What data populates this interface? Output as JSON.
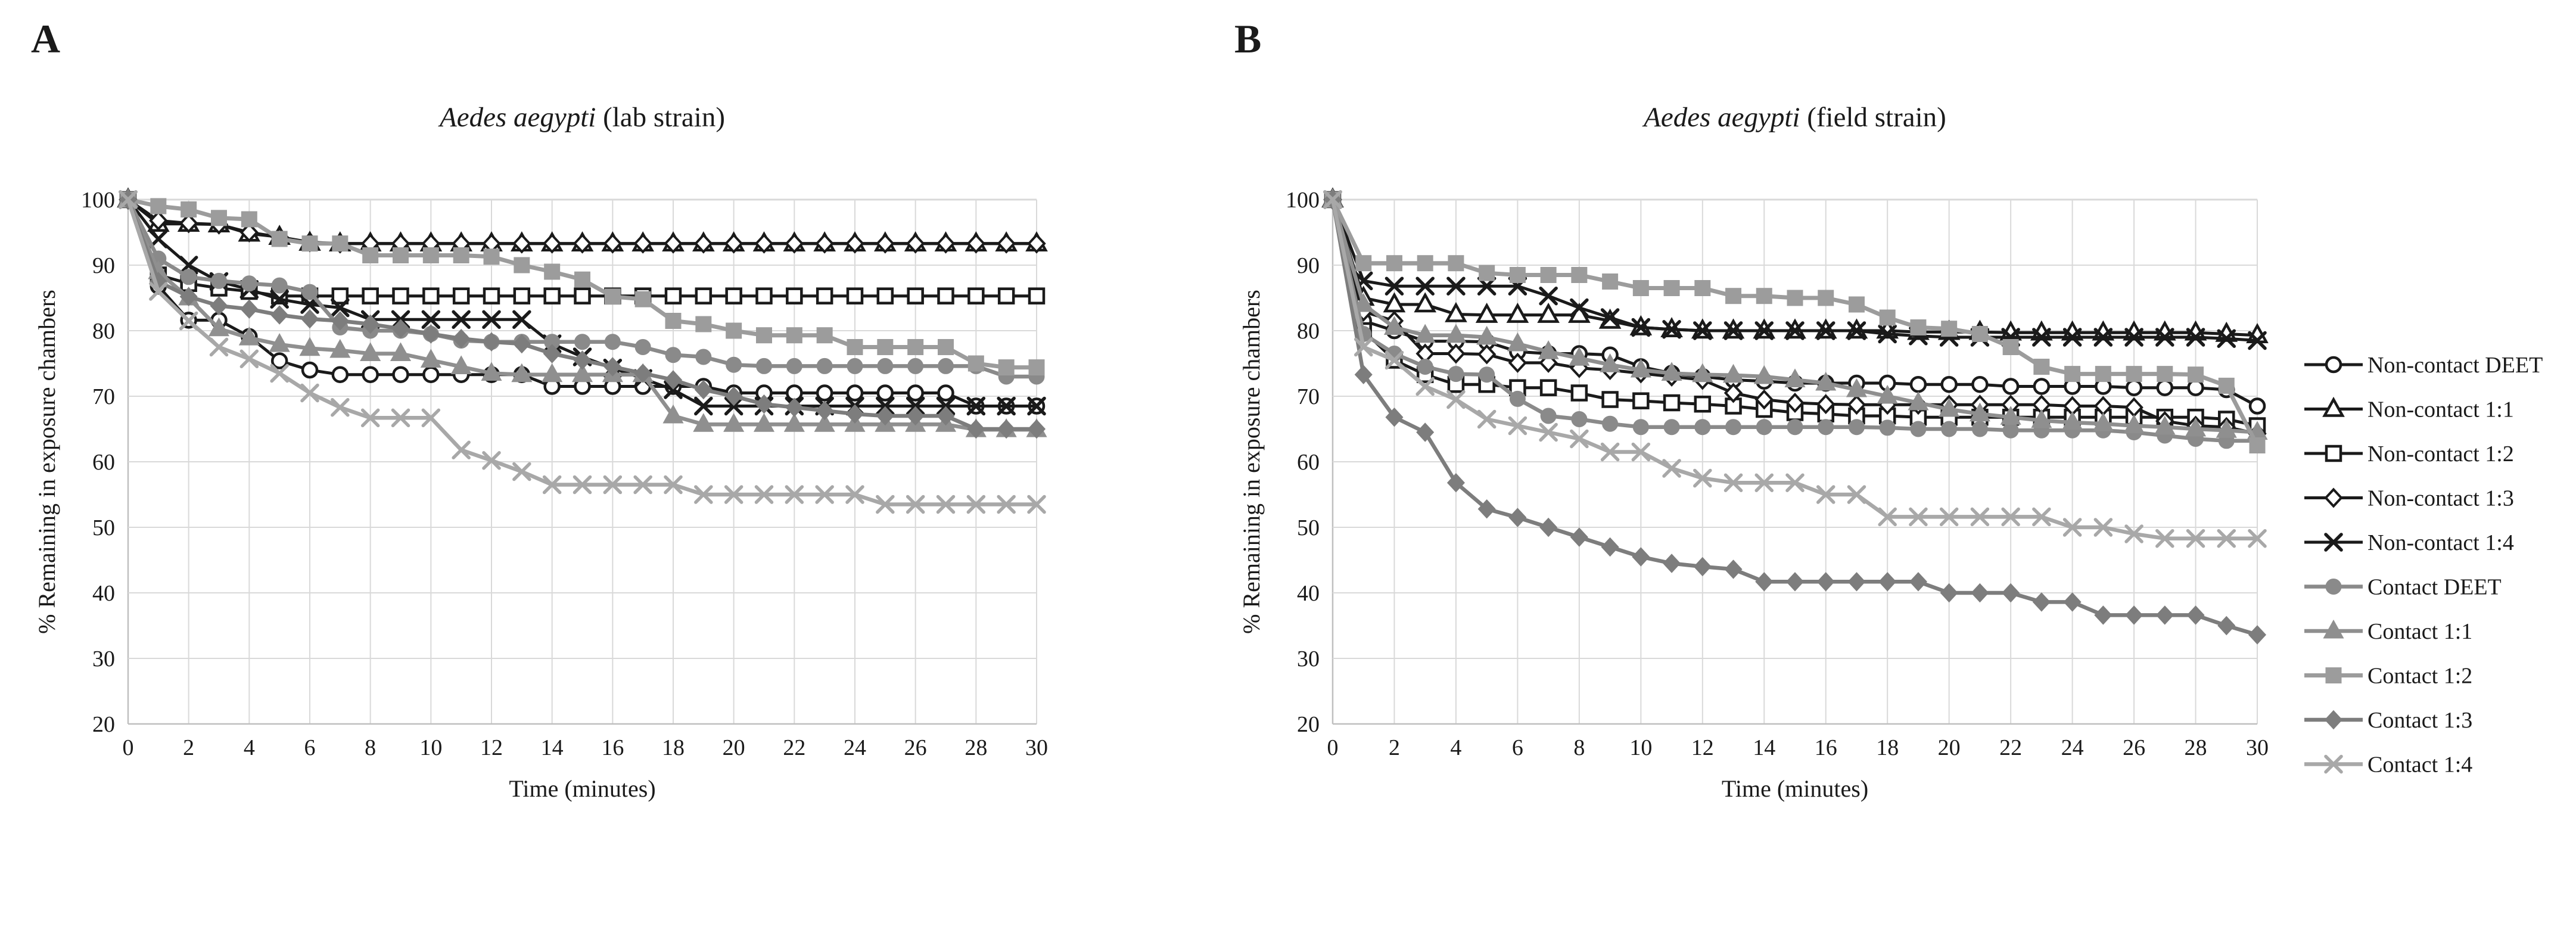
{
  "figure": {
    "background": "#ffffff",
    "text_color": "#1a1a1a",
    "gridline_color": "#d9d9d9",
    "panel_letters": [
      "A",
      "B"
    ],
    "legend": {
      "position": "right",
      "entries": [
        {
          "label": "Non-contact DEET",
          "marker": "circle-open-icon"
        },
        {
          "label": "Non-contact 1:1",
          "marker": "triangle-open-icon"
        },
        {
          "label": "Non-contact 1:2",
          "marker": "square-open-icon"
        },
        {
          "label": "Non-contact 1:3",
          "marker": "diamond-open-icon"
        },
        {
          "label": "Non-contact 1:4",
          "marker": "x-black-icon"
        },
        {
          "label": "Contact DEET",
          "marker": "circle-filled-icon"
        },
        {
          "label": "Contact 1:1",
          "marker": "triangle-filled-icon"
        },
        {
          "label": "Contact 1:2",
          "marker": "square-filled-icon"
        },
        {
          "label": "Contact 1:3",
          "marker": "diamond-filled-icon"
        },
        {
          "label": "Contact 1:4",
          "marker": "x-gray-icon"
        }
      ]
    }
  },
  "chart_data": [
    {
      "type": "line",
      "panel_letter": "A",
      "title_italic": "Aedes aegypti",
      "title_rest": " (lab strain)",
      "xlabel": "Time (minutes)",
      "ylabel": "% Remaining in exposure chambers",
      "x": [
        0,
        1,
        2,
        3,
        4,
        5,
        6,
        7,
        8,
        9,
        10,
        11,
        12,
        13,
        14,
        15,
        16,
        17,
        18,
        19,
        20,
        21,
        22,
        23,
        24,
        25,
        26,
        27,
        28,
        29,
        30
      ],
      "xlim": [
        0,
        30
      ],
      "ylim": [
        20,
        100
      ],
      "xtick_step": 2,
      "ytick_step": 10,
      "grid": true,
      "series": [
        {
          "name": "Non-contact DEET",
          "color": "#1a1a1a",
          "marker": "circle",
          "fill": "open",
          "width": 5,
          "values": [
            100,
            86.8,
            81.6,
            81.6,
            79.1,
            75.4,
            74,
            73.3,
            73.3,
            73.3,
            73.3,
            73.3,
            73.3,
            73.3,
            71.5,
            71.5,
            71.5,
            71.5,
            71.5,
            71.5,
            70.5,
            70.5,
            70.5,
            70.5,
            70.5,
            70.5,
            70.5,
            70.5,
            68.5,
            68.5,
            68.5
          ]
        },
        {
          "name": "Non-contact 1:1",
          "color": "#1a1a1a",
          "marker": "triangle",
          "fill": "open",
          "width": 5,
          "values": [
            100,
            96.3,
            96.3,
            96.2,
            94.8,
            94.3,
            93.4,
            93.3,
            93.3,
            93.3,
            93.3,
            93.3,
            93.3,
            93.3,
            93.3,
            93.3,
            93.3,
            93.3,
            93.3,
            93.3,
            93.3,
            93.3,
            93.3,
            93.3,
            93.3,
            93.3,
            93.3,
            93.3,
            93.3,
            93.3,
            93.3
          ]
        },
        {
          "name": "Non-contact 1:2",
          "color": "#1a1a1a",
          "marker": "square",
          "fill": "open",
          "width": 5,
          "values": [
            100,
            88.5,
            87.2,
            86.5,
            86,
            85.3,
            85.3,
            85.3,
            85.3,
            85.3,
            85.3,
            85.3,
            85.3,
            85.3,
            85.3,
            85.3,
            85.3,
            85.3,
            85.3,
            85.3,
            85.3,
            85.3,
            85.3,
            85.3,
            85.3,
            85.3,
            85.3,
            85.3,
            85.3,
            85.3,
            85.3
          ]
        },
        {
          "name": "Non-contact 1:3",
          "color": "#1a1a1a",
          "marker": "diamond",
          "fill": "open",
          "width": 5,
          "values": [
            100,
            96.8,
            96.4,
            96.2,
            95,
            94.3,
            93.5,
            93.3,
            93.3,
            93.3,
            93.3,
            93.3,
            93.3,
            93.3,
            93.3,
            93.3,
            93.3,
            93.3,
            93.3,
            93.3,
            93.3,
            93.3,
            93.3,
            93.3,
            93.3,
            93.3,
            93.3,
            93.3,
            93.3,
            93.3,
            93.3
          ]
        },
        {
          "name": "Non-contact 1:4",
          "color": "#1a1a1a",
          "marker": "x",
          "fill": "line",
          "width": 5,
          "values": [
            100,
            94,
            90,
            87.5,
            86.3,
            84.8,
            84,
            83.5,
            81.7,
            81.7,
            81.7,
            81.7,
            81.7,
            81.7,
            78,
            76,
            74.3,
            72.7,
            71,
            68.5,
            68.5,
            68.5,
            68.5,
            68.5,
            68.5,
            68.5,
            68.5,
            68.5,
            68.5,
            68.5,
            68.5
          ]
        },
        {
          "name": "Contact DEET",
          "color": "#8a8a8a",
          "marker": "circle",
          "fill": "solid",
          "width": 6.5,
          "values": [
            100,
            91,
            88.2,
            87.6,
            87.2,
            86.9,
            85.9,
            80.5,
            80,
            80,
            79.5,
            78.5,
            78.3,
            78.3,
            78.3,
            78.3,
            78.3,
            77.5,
            76.3,
            76,
            74.8,
            74.6,
            74.6,
            74.6,
            74.6,
            74.6,
            74.6,
            74.6,
            74.6,
            73,
            73
          ]
        },
        {
          "name": "Contact 1:1",
          "color": "#8f8f8f",
          "marker": "triangle",
          "fill": "solid",
          "width": 6.5,
          "values": [
            100,
            89,
            85,
            80.3,
            78.9,
            77.9,
            77.3,
            77,
            76.5,
            76.5,
            75.5,
            74.5,
            73.5,
            73.3,
            73.3,
            73.3,
            73.3,
            73.3,
            67,
            65.7,
            65.7,
            65.7,
            65.7,
            65.7,
            65.7,
            65.7,
            65.7,
            65.7,
            64.9,
            64.9,
            64.9
          ]
        },
        {
          "name": "Contact 1:2",
          "color": "#9c9c9c",
          "marker": "square",
          "fill": "solid",
          "width": 7,
          "values": [
            100,
            99,
            98.5,
            97.2,
            97,
            94,
            93.3,
            93.3,
            91.5,
            91.5,
            91.5,
            91.5,
            91.3,
            90,
            89,
            87.8,
            85.2,
            84.8,
            81.5,
            81,
            80,
            79.3,
            79.3,
            79.3,
            77.5,
            77.5,
            77.5,
            77.5,
            75,
            74.4,
            74.4
          ]
        },
        {
          "name": "Contact 1:3",
          "color": "#7d7d7d",
          "marker": "diamond",
          "fill": "solid",
          "width": 6.5,
          "values": [
            100,
            87.5,
            85.2,
            83.8,
            83.3,
            82.4,
            81.8,
            81.5,
            81,
            80.3,
            79.5,
            78.8,
            78.3,
            78,
            76.5,
            75.5,
            74.5,
            73.5,
            72.5,
            71,
            70,
            68.8,
            68.3,
            67.8,
            67.3,
            67,
            67,
            67,
            65,
            65,
            65
          ]
        },
        {
          "name": "Contact 1:4",
          "color": "#a8a8a8",
          "marker": "x",
          "fill": "line",
          "width": 6.5,
          "values": [
            100,
            86,
            81.5,
            77.5,
            75.7,
            73.5,
            70.5,
            68.3,
            66.7,
            66.7,
            66.7,
            61.8,
            60.2,
            58.5,
            56.5,
            56.5,
            56.5,
            56.5,
            56.5,
            55,
            55,
            55,
            55,
            55,
            55,
            53.5,
            53.5,
            53.5,
            53.5,
            53.5,
            53.5
          ]
        }
      ]
    },
    {
      "type": "line",
      "panel_letter": "B",
      "title_italic": "Aedes aegypti",
      "title_rest": " (field strain)",
      "xlabel": "Time (minutes)",
      "ylabel": "% Remaining in exposure chambers",
      "x": [
        0,
        1,
        2,
        3,
        4,
        5,
        6,
        7,
        8,
        9,
        10,
        11,
        12,
        13,
        14,
        15,
        16,
        17,
        18,
        19,
        20,
        21,
        22,
        23,
        24,
        25,
        26,
        27,
        28,
        29,
        30
      ],
      "xlim": [
        0,
        30
      ],
      "ylim": [
        20,
        100
      ],
      "xtick_step": 2,
      "ytick_step": 10,
      "grid": true,
      "series": [
        {
          "name": "Non-contact DEET",
          "color": "#1a1a1a",
          "marker": "circle",
          "fill": "open",
          "width": 5,
          "values": [
            100,
            81.5,
            80,
            78.4,
            78.4,
            78.3,
            76.8,
            76.5,
            76.5,
            76.3,
            74.5,
            73.5,
            73,
            72.5,
            72.3,
            72,
            72,
            72,
            72,
            71.8,
            71.8,
            71.8,
            71.5,
            71.5,
            71.5,
            71.5,
            71.3,
            71.3,
            71.3,
            71,
            68.5
          ]
        },
        {
          "name": "Non-contact 1:1",
          "color": "#1a1a1a",
          "marker": "triangle",
          "fill": "open",
          "width": 5,
          "values": [
            100,
            85,
            84,
            84,
            82.5,
            82.4,
            82.4,
            82.4,
            82.4,
            81.5,
            80.5,
            80.2,
            80,
            80,
            80,
            80,
            80,
            80,
            80,
            79.8,
            79.8,
            79.8,
            79.7,
            79.7,
            79.7,
            79.7,
            79.7,
            79.7,
            79.7,
            79.5,
            79.3
          ]
        },
        {
          "name": "Non-contact 1:2",
          "color": "#1a1a1a",
          "marker": "square",
          "fill": "open",
          "width": 5,
          "values": [
            100,
            80,
            75.5,
            73.3,
            71.8,
            71.8,
            71.3,
            71.3,
            70.5,
            69.5,
            69.3,
            69,
            68.8,
            68.5,
            68,
            67.5,
            67.3,
            67,
            67,
            66.8,
            66.8,
            66.8,
            66.8,
            66.8,
            66.8,
            66.8,
            66.8,
            66.8,
            66.8,
            66.5,
            65.5
          ]
        },
        {
          "name": "Non-contact 1:3",
          "color": "#1a1a1a",
          "marker": "diamond",
          "fill": "open",
          "width": 5,
          "values": [
            100,
            82.9,
            81.5,
            76.5,
            76.5,
            76.4,
            75.1,
            75.1,
            74.3,
            74,
            73.5,
            73,
            72.5,
            70.5,
            69.5,
            69,
            68.8,
            68.7,
            68.7,
            68.7,
            68.7,
            68.7,
            68.7,
            68.7,
            68.5,
            68.5,
            68.3,
            66.2,
            65.5,
            65.3,
            64.3
          ]
        },
        {
          "name": "Non-contact 1:4",
          "color": "#1a1a1a",
          "marker": "x",
          "fill": "line",
          "width": 5,
          "values": [
            100,
            87.6,
            86.8,
            86.8,
            86.8,
            86.8,
            86.8,
            85.3,
            83.5,
            82,
            80.5,
            80.2,
            80,
            80,
            80,
            80,
            80,
            80,
            79.5,
            79.2,
            79,
            79,
            79,
            79,
            79,
            79,
            79,
            79,
            79,
            78.8,
            78.5
          ]
        },
        {
          "name": "Contact DEET",
          "color": "#8a8a8a",
          "marker": "circle",
          "fill": "solid",
          "width": 6.5,
          "values": [
            100,
            79.5,
            76.5,
            74.5,
            73.4,
            73.3,
            69.6,
            67,
            66.5,
            65.8,
            65.3,
            65.3,
            65.3,
            65.3,
            65.3,
            65.3,
            65.3,
            65.3,
            65.2,
            65,
            65,
            65,
            64.8,
            64.8,
            64.8,
            64.8,
            64.5,
            64,
            63.5,
            63.2,
            63.2
          ]
        },
        {
          "name": "Contact 1:1",
          "color": "#8f8f8f",
          "marker": "triangle",
          "fill": "solid",
          "width": 6.5,
          "values": [
            100,
            84,
            80.5,
            79.3,
            79.3,
            79,
            78,
            76.8,
            75.8,
            74.8,
            74,
            73.5,
            73.3,
            73.2,
            73,
            72.5,
            72,
            71,
            70,
            69,
            68,
            67.3,
            66.8,
            66.3,
            66,
            65.8,
            65.5,
            65.3,
            65,
            64.8,
            64.5
          ]
        },
        {
          "name": "Contact 1:2",
          "color": "#9c9c9c",
          "marker": "square",
          "fill": "solid",
          "width": 7,
          "values": [
            100,
            90.3,
            90.3,
            90.3,
            90.3,
            88.8,
            88.5,
            88.5,
            88.5,
            87.5,
            86.5,
            86.5,
            86.5,
            85.3,
            85.3,
            85,
            85,
            84,
            82,
            80.5,
            80.3,
            79.5,
            77.5,
            74.5,
            73.4,
            73.4,
            73.4,
            73.4,
            73.3,
            71.6,
            62.5
          ]
        },
        {
          "name": "Contact 1:3",
          "color": "#7d7d7d",
          "marker": "diamond",
          "fill": "solid",
          "width": 6.5,
          "values": [
            100,
            73.3,
            66.8,
            64.5,
            56.8,
            52.8,
            51.5,
            50,
            48.5,
            47,
            45.5,
            44.5,
            44,
            43.6,
            41.7,
            41.7,
            41.7,
            41.7,
            41.7,
            41.7,
            40,
            40,
            40,
            38.6,
            38.6,
            36.6,
            36.6,
            36.6,
            36.6,
            35,
            33.6
          ]
        },
        {
          "name": "Contact 1:4",
          "color": "#a8a8a8",
          "marker": "x",
          "fill": "line",
          "width": 6.5,
          "values": [
            100,
            77.5,
            75.5,
            71.5,
            69.5,
            66.5,
            65.5,
            64.5,
            63.5,
            61.5,
            61.5,
            59,
            57.5,
            56.8,
            56.8,
            56.8,
            55,
            55,
            51.6,
            51.6,
            51.6,
            51.6,
            51.6,
            51.6,
            50,
            50,
            49,
            48.3,
            48.3,
            48.3,
            48.3
          ]
        }
      ]
    }
  ]
}
